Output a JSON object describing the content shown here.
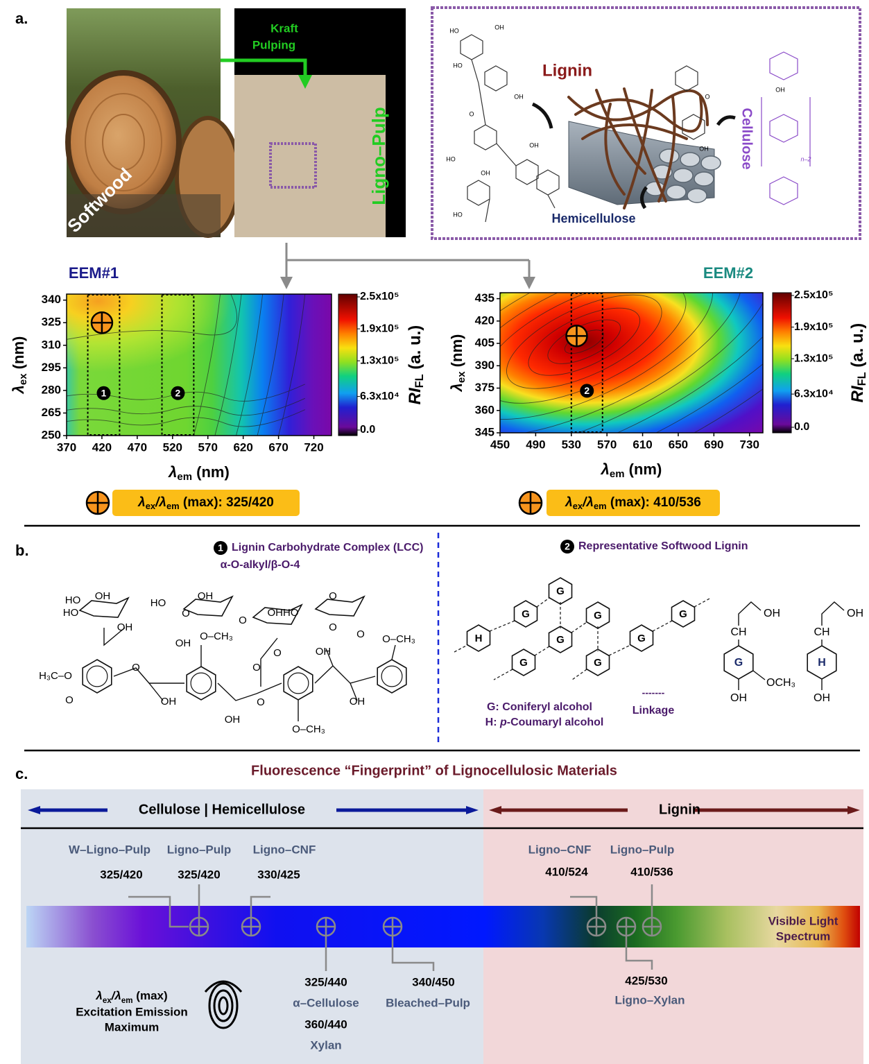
{
  "panel_a": {
    "label": "a.",
    "kraft": [
      "Kraft",
      "Pulping"
    ],
    "softwood": "Softwood",
    "ligno_pulp": "Ligno–Pulp",
    "lignin": "Lignin",
    "cellulose": "Cellulose",
    "hemicellulose": "Hemicellulose",
    "n_label": "n–2",
    "atoms": [
      "HO",
      "OH",
      "HO",
      "OH",
      "O",
      "HO",
      "OH",
      "OH",
      "HO",
      "O",
      "OH",
      "OH"
    ]
  },
  "chart_data": [
    {
      "type": "contour",
      "title": "EEM#1",
      "xlabel": [
        "λ",
        "em",
        " (nm)"
      ],
      "ylabel": [
        "λ",
        "ex",
        " (nm)"
      ],
      "xlim": [
        370,
        745
      ],
      "xticks": [
        370,
        420,
        470,
        520,
        570,
        620,
        670,
        720
      ],
      "ylim": [
        250,
        344
      ],
      "yticks": [
        250,
        265,
        280,
        295,
        310,
        325,
        340
      ],
      "colorbar_label": [
        "RI",
        "FL",
        " (a. u.)"
      ],
      "clim": [
        0,
        250000
      ],
      "cticks": [
        {
          "value": 0,
          "label": "0.0"
        },
        {
          "value": 63000,
          "label": "6.3x10⁴"
        },
        {
          "value": 130000,
          "label": "1.3x10⁵"
        },
        {
          "value": 190000,
          "label": "1.9x10⁵"
        },
        {
          "value": 250000,
          "label": "2.5x10⁵"
        }
      ],
      "regions": [
        {
          "label": "1",
          "em": [
            400,
            445
          ]
        },
        {
          "label": "2",
          "em": [
            505,
            550
          ]
        }
      ],
      "peak": {
        "ex": 325,
        "em": 420
      },
      "max_label": {
        "parts": [
          "λ",
          "ex",
          "/λ",
          "em",
          " (max): "
        ],
        "value": "325/420"
      }
    },
    {
      "type": "contour",
      "title": "EEM#2",
      "xlabel": [
        "λ",
        "em",
        " (nm)"
      ],
      "ylabel": [
        "λ",
        "ex",
        " (nm)"
      ],
      "xlim": [
        450,
        745
      ],
      "xticks": [
        450,
        490,
        530,
        570,
        610,
        650,
        690,
        730
      ],
      "ylim": [
        345,
        439
      ],
      "yticks": [
        345,
        360,
        375,
        390,
        405,
        420,
        435
      ],
      "colorbar_label": [
        "RI",
        "FL",
        " (a. u.)"
      ],
      "clim": [
        0,
        250000
      ],
      "cticks": [
        {
          "value": 0,
          "label": "0.0"
        },
        {
          "value": 63000,
          "label": "6.3x10⁴"
        },
        {
          "value": 130000,
          "label": "1.3x10⁵"
        },
        {
          "value": 190000,
          "label": "1.9x10⁵"
        },
        {
          "value": 250000,
          "label": "2.5x10⁵"
        }
      ],
      "regions": [
        {
          "label": "2",
          "em": [
            530,
            565
          ]
        }
      ],
      "peak": {
        "ex": 410,
        "em": 536
      },
      "max_label": {
        "parts": [
          "λ",
          "ex",
          "/λ",
          "em",
          " (max): "
        ],
        "value": "410/536"
      }
    }
  ],
  "panel_b": {
    "label": "b.",
    "lcc_number": "1",
    "lcc_title": "Lignin Carbohydrate Complex (LCC)",
    "lcc_subtitle": "α-O-alkyl/β-O-4",
    "lcc_atoms": [
      "OH",
      "HO",
      "HO",
      "OH",
      "HO",
      "OH",
      "O",
      "OHHO",
      "O",
      "OH",
      "O–CH₃",
      "O",
      "O",
      "H₃C–O",
      "O",
      "O",
      "OH",
      "O",
      "OH",
      "OH",
      "OH",
      "O–CH₃",
      "O–CH₃",
      "O",
      "O",
      "O"
    ],
    "lignin_number": "2",
    "lignin_title": "Representative Softwood Lignin",
    "network": [
      "H",
      "G",
      "G",
      "G",
      "G",
      "G",
      "G",
      "G",
      "G"
    ],
    "legend_g": "G: Coniferyl alcohol",
    "legend_h": [
      "H: ",
      "p",
      "-Coumaryl alcohol"
    ],
    "linkage_symbol": "-------",
    "linkage": "Linkage",
    "monomer_g": {
      "ring": "G",
      "ch": "CH",
      "oh_top": "OH",
      "och3": "OCH₃",
      "oh_bottom": "OH"
    },
    "monomer_h": {
      "ring": "H",
      "ch": "CH",
      "oh_top": "OH",
      "oh_bottom": "OH"
    }
  },
  "panel_c": {
    "label": "c.",
    "title": "Fluorescence “Fingerprint” of Lignocellulosic Materials",
    "left_header": "Cellulose | Hemicellulose",
    "right_header": "Lignin",
    "above": [
      {
        "name": "W–Ligno–Pulp",
        "value": "325/420"
      },
      {
        "name": "Ligno–Pulp",
        "value": "325/420"
      },
      {
        "name": "Ligno–CNF",
        "value": "330/425"
      },
      {
        "name": "Ligno–CNF",
        "value": "410/524"
      },
      {
        "name": "Ligno–Pulp",
        "value": "410/536"
      }
    ],
    "below": [
      {
        "value": "325/440",
        "name": "α–Cellulose"
      },
      {
        "value": "360/440",
        "name": "Xylan"
      },
      {
        "value": "340/450",
        "name": "Bleached–Pulp"
      },
      {
        "value": "425/530",
        "name": "Ligno–Xylan"
      }
    ],
    "legend": {
      "parts": [
        "λ",
        "ex",
        "/λ",
        "em",
        " (max)"
      ],
      "line2": "Excitation Emission",
      "line3": "Maximum"
    },
    "spectrum": [
      "Visible Light",
      "Spectrum"
    ]
  }
}
